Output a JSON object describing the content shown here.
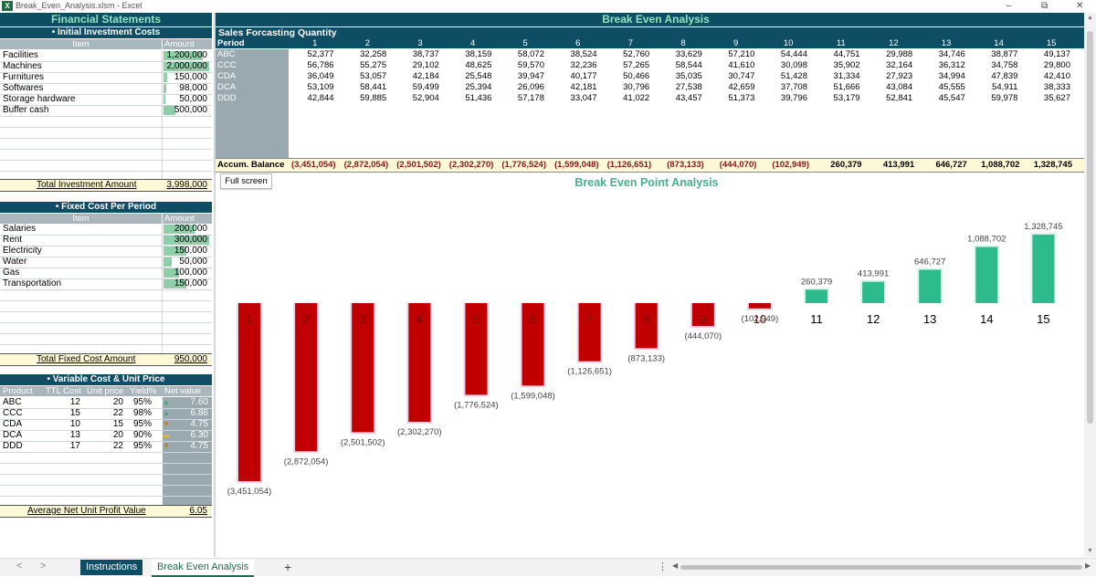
{
  "window": {
    "title": "Break_Even_Analysis.xlsm - Excel",
    "app_icon": "X",
    "minimize": "–",
    "restore": "⧉",
    "close": "✕"
  },
  "left": {
    "header": "Financial Statements",
    "initial": {
      "title": "• Initial Investment Costs",
      "col_item": "Item",
      "col_amount": "Amount",
      "items": [
        {
          "name": "Facilities",
          "amount": "1,200,000",
          "fill": 0.85
        },
        {
          "name": "Machines",
          "amount": "2,000,000",
          "fill": 1.0
        },
        {
          "name": "Furnitures",
          "amount": "150,000",
          "fill": 0.08
        },
        {
          "name": "Softwares",
          "amount": "98,000",
          "fill": 0.05
        },
        {
          "name": "Storage hardware",
          "amount": "50,000",
          "fill": 0.03
        },
        {
          "name": "Buffer cash",
          "amount": "500,000",
          "fill": 0.25
        }
      ],
      "total_label": "Total Investment Amount",
      "total_value": "3,998,000"
    },
    "fixed": {
      "title": "• Fixed Cost Per Period",
      "col_item": "Item",
      "col_amount": "Amount",
      "items": [
        {
          "name": "Salaries",
          "amount": "200,000",
          "fill": 0.67
        },
        {
          "name": "Rent",
          "amount": "300,000",
          "fill": 1.0
        },
        {
          "name": "Electricity",
          "amount": "150,000",
          "fill": 0.5
        },
        {
          "name": "Water",
          "amount": "50,000",
          "fill": 0.17
        },
        {
          "name": "Gas",
          "amount": "100,000",
          "fill": 0.33
        },
        {
          "name": "Transportation",
          "amount": "150,000",
          "fill": 0.5
        }
      ],
      "total_label": "Total Fixed Cost Amount",
      "total_value": "950,000"
    },
    "variable": {
      "title": "• Variable Cost & Unit Price",
      "cols": [
        "Product",
        "TTL Cost",
        "Unit price",
        "Yield%",
        "Net value"
      ],
      "items": [
        {
          "product": "ABC",
          "cost": "12",
          "price": "20",
          "yield": "95%",
          "net": "7.60",
          "trend": "up"
        },
        {
          "product": "CCC",
          "cost": "15",
          "price": "22",
          "yield": "98%",
          "net": "6.86",
          "trend": "up"
        },
        {
          "product": "CDA",
          "cost": "10",
          "price": "15",
          "yield": "95%",
          "net": "4.75",
          "trend": "down"
        },
        {
          "product": "DCA",
          "cost": "13",
          "price": "20",
          "yield": "90%",
          "net": "6.30",
          "trend": "flat"
        },
        {
          "product": "DDD",
          "cost": "17",
          "price": "22",
          "yield": "95%",
          "net": "4.75",
          "trend": "down"
        }
      ],
      "avg_label": "Average Net Unit Profit Value",
      "avg_value": "6.05"
    }
  },
  "main": {
    "header": "Break Even Analysis",
    "sales_title": "Sales Forcasting Quantity",
    "period_label": "Period",
    "periods": [
      "1",
      "2",
      "3",
      "4",
      "5",
      "6",
      "7",
      "8",
      "9",
      "10",
      "11",
      "12",
      "13",
      "14",
      "15"
    ],
    "products": [
      {
        "name": "ABC",
        "values": [
          "52,377",
          "32,258",
          "38,737",
          "38,159",
          "58,072",
          "38,524",
          "52,760",
          "33,629",
          "57,210",
          "54,444",
          "44,751",
          "29,988",
          "34,746",
          "38,877",
          "49,137"
        ]
      },
      {
        "name": "CCC",
        "values": [
          "56,786",
          "55,275",
          "29,102",
          "48,625",
          "59,570",
          "32,236",
          "57,265",
          "58,544",
          "41,610",
          "30,098",
          "35,902",
          "32,164",
          "36,312",
          "34,758",
          "29,800"
        ]
      },
      {
        "name": "CDA",
        "values": [
          "36,049",
          "53,057",
          "42,184",
          "25,548",
          "39,947",
          "40,177",
          "50,466",
          "35,035",
          "30,747",
          "51,428",
          "31,334",
          "27,923",
          "34,994",
          "47,839",
          "42,410"
        ]
      },
      {
        "name": "DCA",
        "values": [
          "53,109",
          "58,441",
          "59,499",
          "25,394",
          "26,096",
          "42,181",
          "30,796",
          "27,538",
          "42,659",
          "37,708",
          "51,666",
          "43,084",
          "45,555",
          "54,911",
          "38,333"
        ]
      },
      {
        "name": "DDD",
        "values": [
          "42,844",
          "59,885",
          "52,904",
          "51,436",
          "57,178",
          "33,047",
          "41,022",
          "43,457",
          "51,373",
          "39,796",
          "53,179",
          "52,841",
          "45,547",
          "59,978",
          "35,627"
        ]
      }
    ],
    "accum_label": "Accum. Balance",
    "accum_values": [
      "(3,451,054)",
      "(2,872,054)",
      "(2,501,502)",
      "(2,302,270)",
      "(1,776,524)",
      "(1,599,048)",
      "(1,126,651)",
      "(873,133)",
      "(444,070)",
      "(102,949)",
      "260,379",
      "413,991",
      "646,727",
      "1,088,702",
      "1,328,745"
    ],
    "full_screen_label": "Full screen"
  },
  "chart_data": {
    "type": "bar",
    "title": "Break Even Point Analysis",
    "categories": [
      "1",
      "2",
      "3",
      "4",
      "5",
      "6",
      "7",
      "8",
      "9",
      "10",
      "11",
      "12",
      "13",
      "14",
      "15"
    ],
    "values": [
      -3451054,
      -2872054,
      -2501502,
      -2302270,
      -1776524,
      -1599048,
      -1126651,
      -873133,
      -444070,
      -102949,
      260379,
      413991,
      646727,
      1088702,
      1328745
    ],
    "labels": [
      "(3,451,054)",
      "(2,872,054)",
      "(2,501,502)",
      "(2,302,270)",
      "(1,776,524)",
      "(1,599,048)",
      "(1,126,651)",
      "(873,133)",
      "(444,070)",
      "(102,949)",
      "260,379",
      "413,991",
      "646,727",
      "1,088,702",
      "1,328,745"
    ],
    "negative_color": "#c00000",
    "positive_color": "#2dba8c",
    "grid": false
  },
  "tabs": {
    "prev": "<",
    "next": ">",
    "items": [
      {
        "label": "Instructions",
        "active": false
      },
      {
        "label": "Break Even Analysis",
        "active": true
      }
    ],
    "add": "+",
    "more": "⋮"
  }
}
